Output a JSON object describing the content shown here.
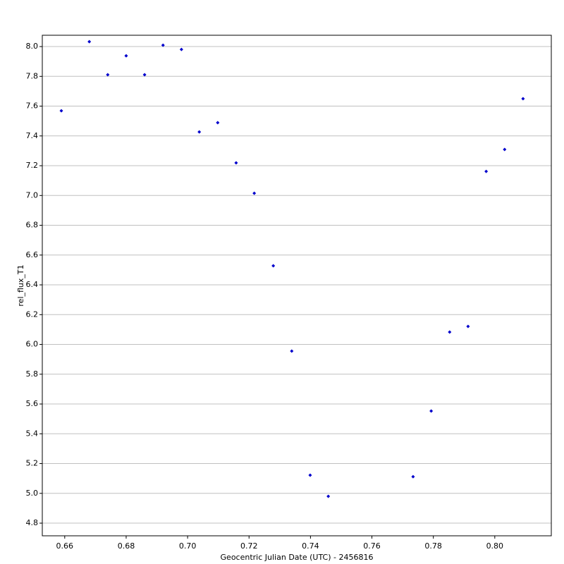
{
  "chart_data": {
    "type": "scatter",
    "xlabel": "Geocentric Julian Date (UTC) - 2456816",
    "ylabel": "rel_flux_T1",
    "x": [
      0.6589,
      0.668,
      0.674,
      0.68,
      0.686,
      0.692,
      0.698,
      0.7038,
      0.7098,
      0.7158,
      0.7217,
      0.7279,
      0.7339,
      0.7399,
      0.7458,
      0.7734,
      0.7793,
      0.7853,
      0.7913,
      0.7972,
      0.8032,
      0.8092
    ],
    "series": [
      {
        "name": "rel_flux_T1",
        "color": "#0000cc",
        "values": [
          7.569,
          8.033,
          7.811,
          7.938,
          7.811,
          8.009,
          7.981,
          7.427,
          7.489,
          7.219,
          7.015,
          6.528,
          5.955,
          5.122,
          4.98,
          5.112,
          5.553,
          6.083,
          6.121,
          7.162,
          7.309,
          7.65
        ]
      }
    ],
    "xlim": [
      0.6527,
      0.8184
    ],
    "ylim": [
      4.715,
      8.076
    ],
    "xticks": [
      0.66,
      0.68,
      {
        "value": 0.7,
        "label": "0.70"
      },
      0.72,
      0.74,
      0.76,
      0.78,
      {
        "value": 0.8,
        "label": "0.80"
      }
    ],
    "yticks": [
      {
        "value": 4.8,
        "label": "4.8"
      },
      {
        "value": 5,
        "label": "5.0"
      },
      {
        "value": 5.2,
        "label": "5.2"
      },
      {
        "value": 5.4,
        "label": "5.4"
      },
      {
        "value": 5.6,
        "label": "5.6"
      },
      {
        "value": 5.8,
        "label": "5.8"
      },
      {
        "value": 6,
        "label": "6.0"
      },
      {
        "value": 6.2,
        "label": "6.2"
      },
      {
        "value": 6.4,
        "label": "6.4"
      },
      {
        "value": 6.6,
        "label": "6.6"
      },
      {
        "value": 6.8,
        "label": "6.8"
      },
      {
        "value": 7,
        "label": "7.0"
      },
      {
        "value": 7.2,
        "label": "7.2"
      },
      {
        "value": 7.4,
        "label": "7.4"
      },
      {
        "value": 7.6,
        "label": "7.6"
      },
      {
        "value": 7.8,
        "label": "7.8"
      },
      {
        "value": 8,
        "label": "8.0"
      }
    ],
    "grid": "y"
  }
}
